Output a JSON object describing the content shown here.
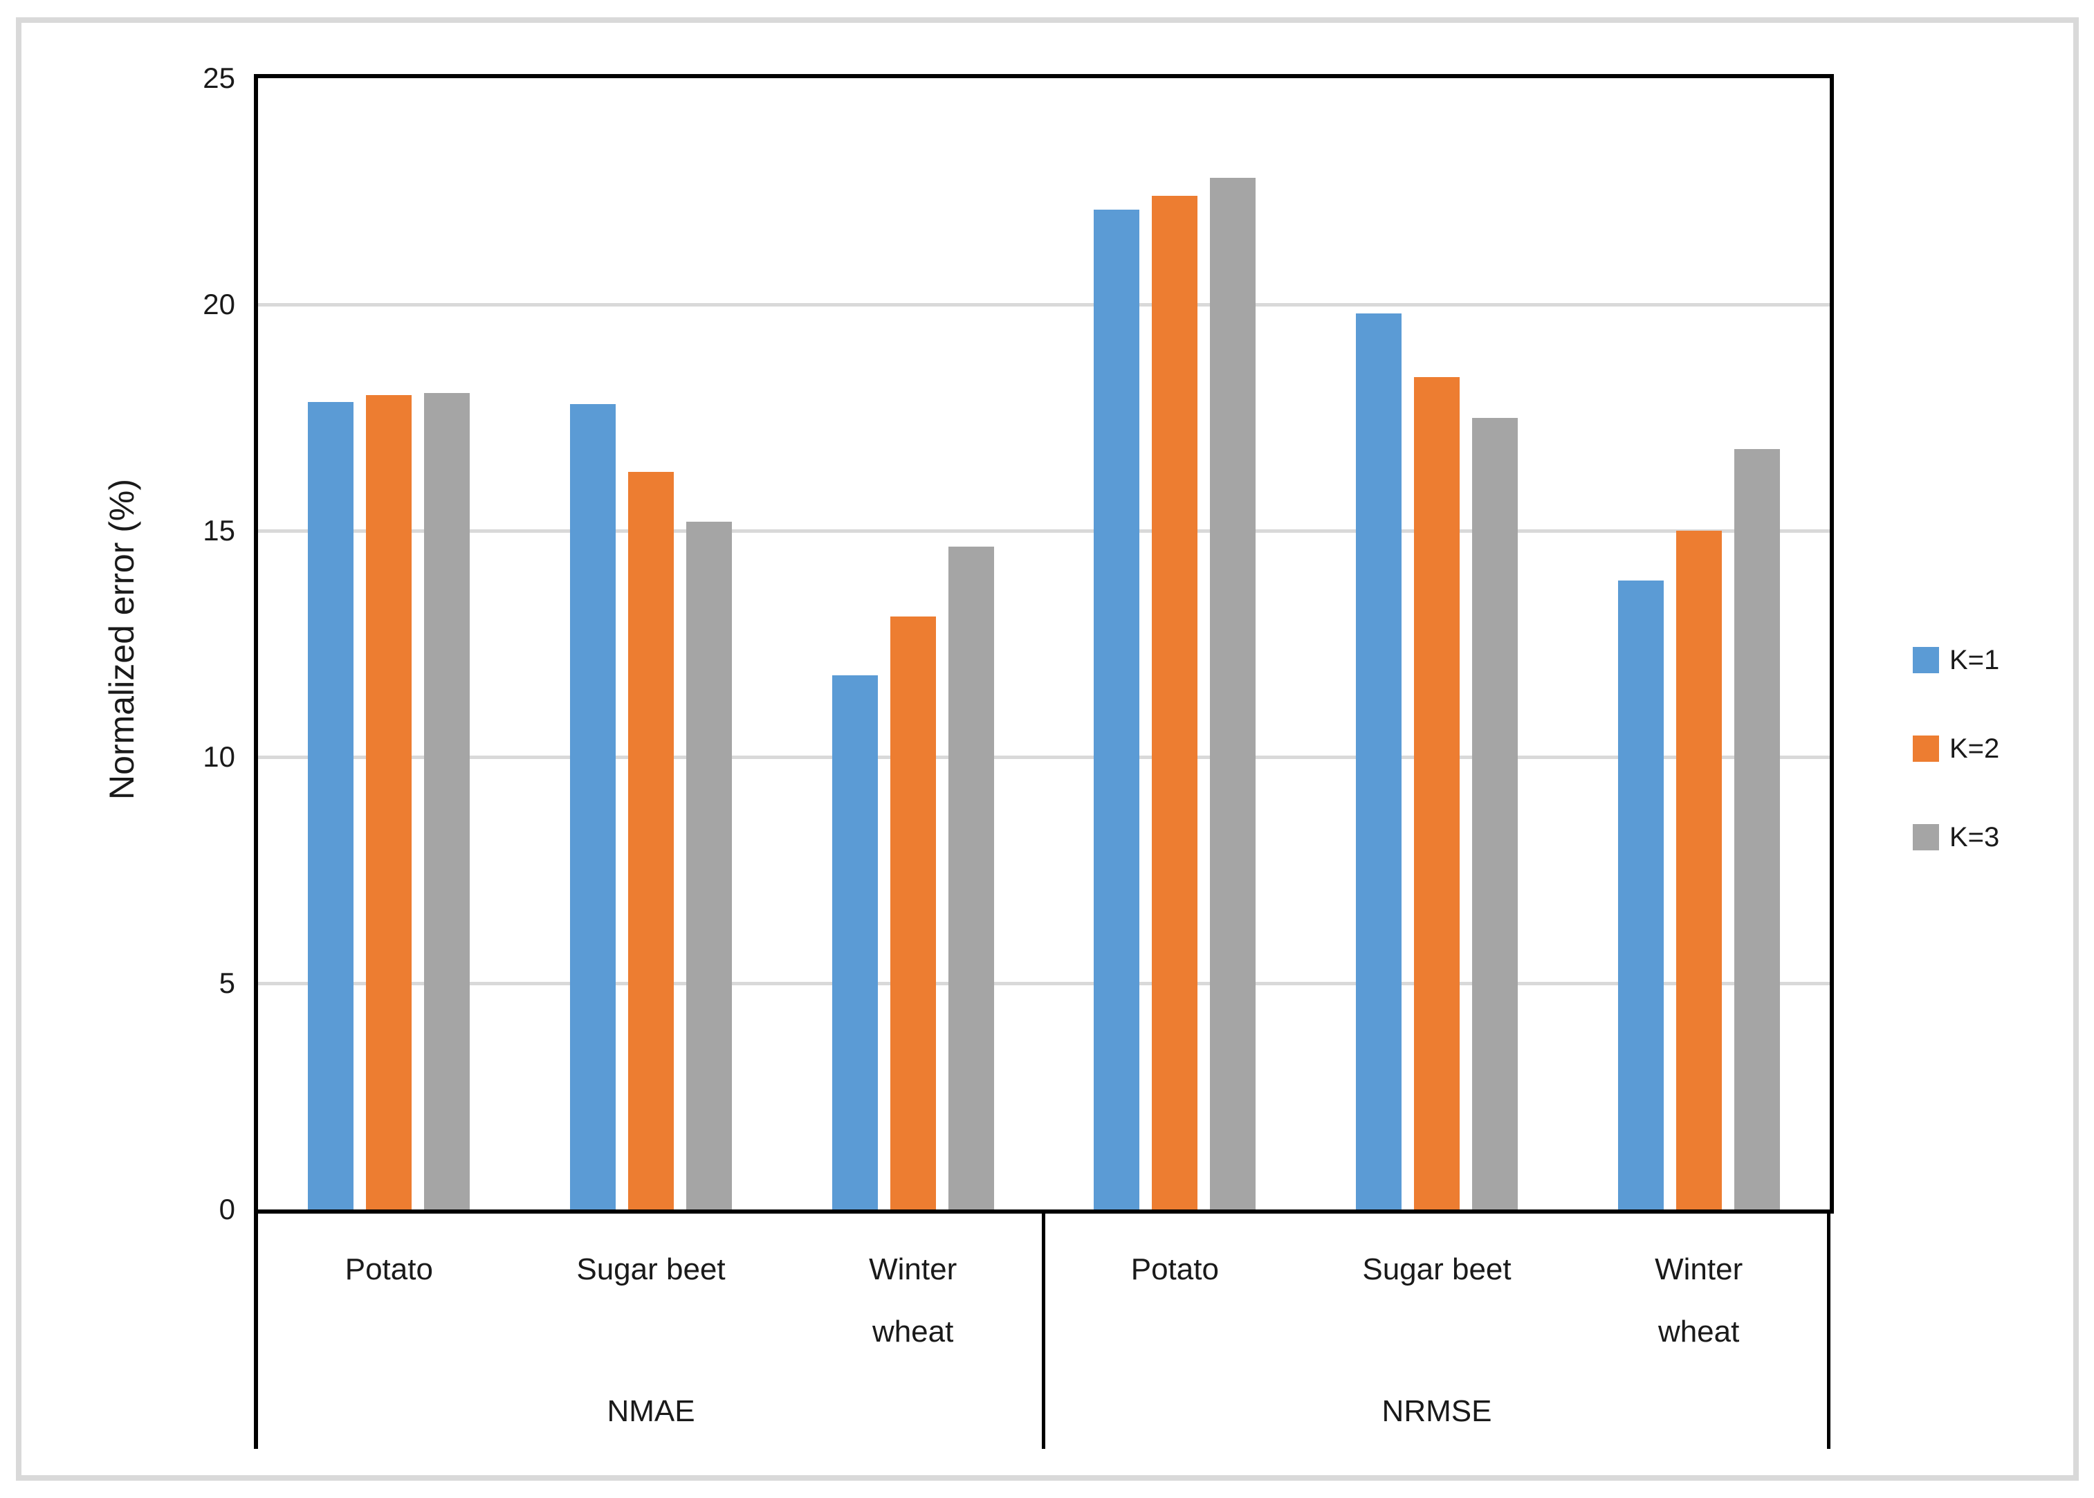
{
  "chart_data": {
    "type": "bar",
    "title": "",
    "ylabel": "Normalized error (%)",
    "xlabel": "",
    "ylim": [
      0,
      25
    ],
    "yticks": [
      0,
      5,
      10,
      15,
      20,
      25
    ],
    "grid": "horizontal",
    "legend_position": "right",
    "groups": [
      "NMAE",
      "NRMSE"
    ],
    "categories": [
      "Potato",
      "Sugar beet",
      "Winter\nwheat"
    ],
    "series": [
      {
        "name": "K=1",
        "color": "#5B9BD5",
        "values": [
          17.85,
          17.8,
          11.8,
          22.1,
          19.8,
          13.9
        ]
      },
      {
        "name": "K=2",
        "color": "#ED7D31",
        "values": [
          18.0,
          16.3,
          13.1,
          22.4,
          18.4,
          15.0
        ]
      },
      {
        "name": "K=3",
        "color": "#A5A5A5",
        "values": [
          18.05,
          15.2,
          14.65,
          22.8,
          17.5,
          16.8
        ]
      }
    ],
    "style": {
      "gridline_color": "#D9D9D9",
      "axis_color": "#000000",
      "frame_color": "#D9D9D9",
      "text_color": "#1A1A1A"
    }
  }
}
